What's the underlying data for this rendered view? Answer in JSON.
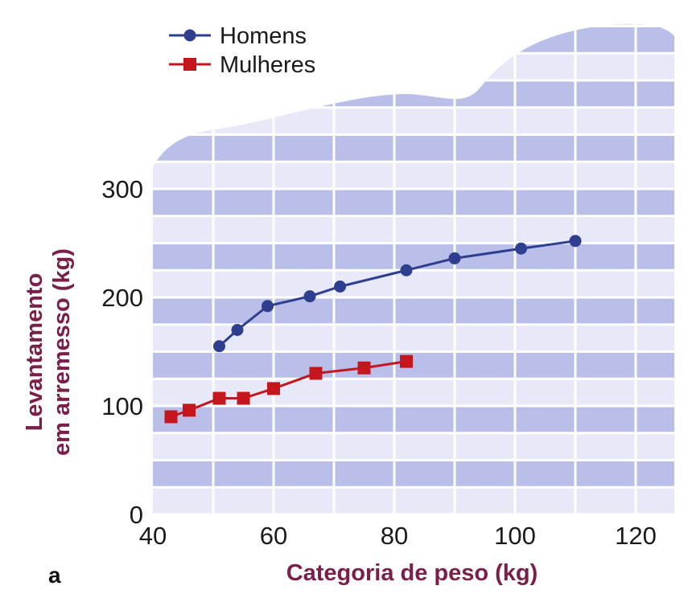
{
  "chart_data": {
    "type": "line",
    "panel_label": "a",
    "xlabel": "Categoria de peso (kg)",
    "ylabel_line1": "Levantamento",
    "ylabel_line2": "em arremesso (kg)",
    "xlim": [
      40,
      127
    ],
    "ylim": [
      0,
      330
    ],
    "xticks": [
      40,
      60,
      80,
      100,
      120
    ],
    "yticks": [
      0,
      100,
      200,
      300
    ],
    "grid": true,
    "legend_position": "top-left",
    "colors": {
      "men": "#2e3f8f",
      "women": "#c4161c",
      "axis_label": "#7a1f4a",
      "band_light": "#e7e9f8",
      "band_dark": "#b9bfe8"
    },
    "series": [
      {
        "name": "Homens",
        "marker": "circle",
        "x": [
          51,
          54,
          59,
          66,
          71,
          82,
          90,
          101,
          110
        ],
        "y": [
          155,
          170,
          192,
          201,
          210,
          225,
          236,
          245,
          252
        ]
      },
      {
        "name": "Mulheres",
        "marker": "square",
        "x": [
          43,
          46,
          51,
          55,
          60,
          67,
          75,
          82
        ],
        "y": [
          90,
          96,
          107,
          107,
          116,
          130,
          135,
          141
        ]
      }
    ]
  }
}
